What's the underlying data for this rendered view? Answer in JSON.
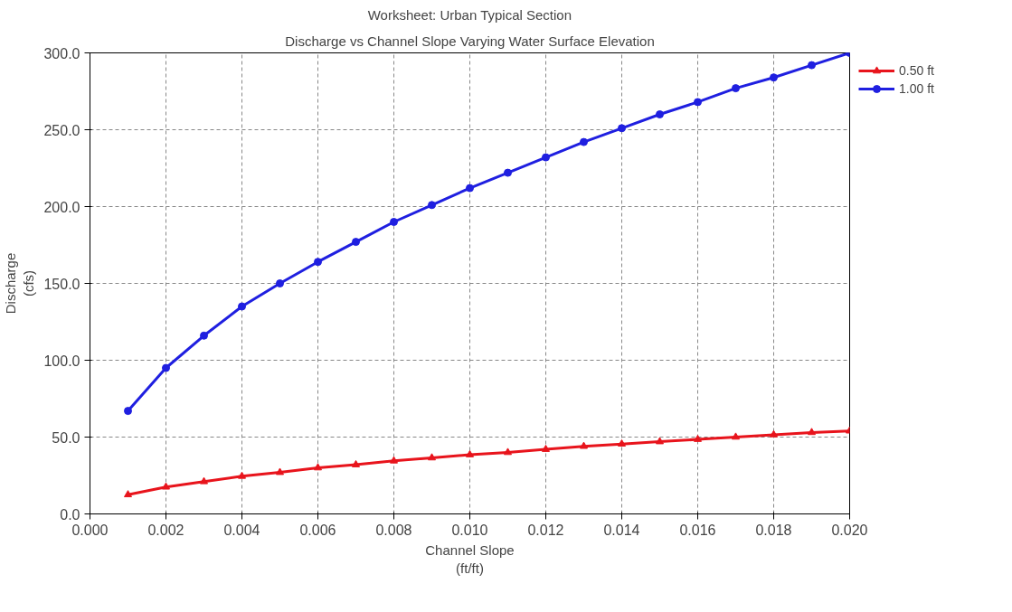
{
  "chart_data": {
    "type": "line",
    "title": "Worksheet: Urban Typical Section",
    "subtitle": "Discharge vs Channel Slope Varying Water Surface Elevation",
    "xlabel": "Channel Slope\n(ft/ft)",
    "ylabel": "Discharge\n(cfs)",
    "x": [
      0.001,
      0.002,
      0.003,
      0.004,
      0.005,
      0.006,
      0.007,
      0.008,
      0.009,
      0.01,
      0.011,
      0.012,
      0.013,
      0.014,
      0.015,
      0.016,
      0.017,
      0.018,
      0.019,
      0.02
    ],
    "series": [
      {
        "name": "0.50 ft",
        "color": "#e8141c",
        "marker": "triangle",
        "values": [
          12.5,
          17.5,
          21,
          24.5,
          27,
          30,
          32,
          34.5,
          36.5,
          38.5,
          40,
          42,
          44,
          45.5,
          47,
          48.5,
          50,
          51.5,
          53,
          54
        ]
      },
      {
        "name": "1.00 ft",
        "color": "#1f1fe0",
        "marker": "circle",
        "values": [
          67,
          95,
          116,
          135,
          150,
          164,
          177,
          190,
          201,
          212,
          222,
          232,
          242,
          251,
          260,
          268,
          277,
          284,
          292,
          300
        ]
      }
    ],
    "xlim": [
      0,
      0.02
    ],
    "ylim": [
      0,
      300
    ],
    "xticks": [
      {
        "value": 0,
        "label": "0.000"
      },
      {
        "value": 0.002,
        "label": "0.002"
      },
      {
        "value": 0.004,
        "label": "0.004"
      },
      {
        "value": 0.006,
        "label": "0.006"
      },
      {
        "value": 0.008,
        "label": "0.008"
      },
      {
        "value": 0.01,
        "label": "0.010"
      },
      {
        "value": 0.012,
        "label": "0.012"
      },
      {
        "value": 0.014,
        "label": "0.014"
      },
      {
        "value": 0.016,
        "label": "0.016"
      },
      {
        "value": 0.018,
        "label": "0.018"
      },
      {
        "value": 0.02,
        "label": "0.020"
      }
    ],
    "yticks": [
      {
        "value": 0,
        "label": "0.0"
      },
      {
        "value": 50,
        "label": "50.0"
      },
      {
        "value": 100,
        "label": "100.0"
      },
      {
        "value": 150,
        "label": "150.0"
      },
      {
        "value": 200,
        "label": "200.0"
      },
      {
        "value": 250,
        "label": "250.0"
      },
      {
        "value": 300,
        "label": "300.0"
      }
    ],
    "grid": true,
    "legend": "top right",
    "line_style": "solid"
  }
}
